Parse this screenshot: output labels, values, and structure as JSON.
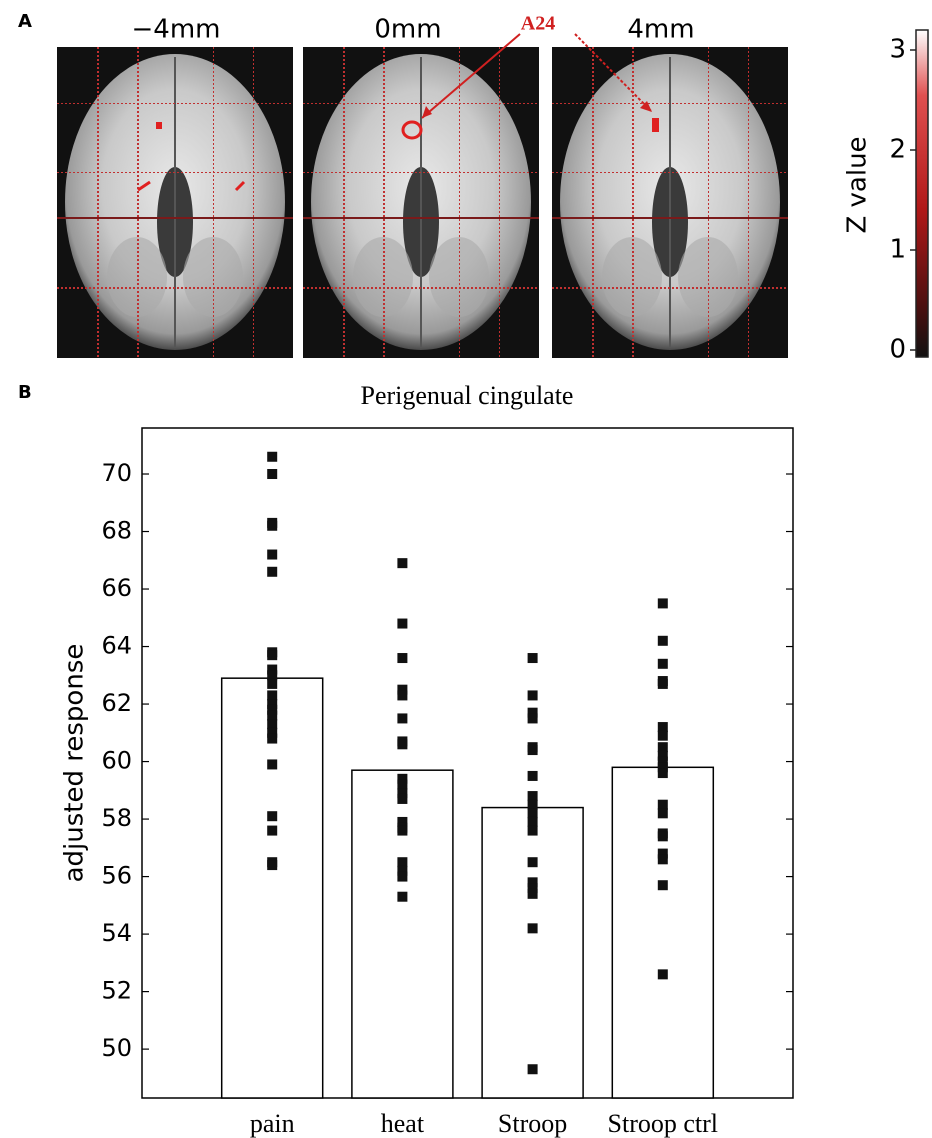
{
  "panel_a": {
    "panel_label": "A",
    "slice_labels": [
      "−4mm",
      "0mm",
      "4mm"
    ],
    "annotation": "A24",
    "colorbar": {
      "label": "Z value",
      "lim": [
        -0.07,
        3.2
      ],
      "ticks": [
        0,
        1,
        2,
        3
      ]
    }
  },
  "chart_data": {
    "type": "bar",
    "panel_label": "B",
    "title": "Perigenual cingulate",
    "y_label": "adjusted response",
    "categories": [
      "pain",
      "heat",
      "Stroop",
      "Stroop ctrl"
    ],
    "values": [
      62.9,
      59.7,
      58.4,
      59.8
    ],
    "color": "#ffffff",
    "point_color": "#111111",
    "points": [
      [
        70.6,
        70.0,
        68.3,
        68.2,
        67.2,
        66.6,
        63.8,
        63.7,
        63.2,
        63.0,
        62.7,
        62.3,
        62.0,
        61.8,
        61.6,
        61.3,
        61.0,
        60.8,
        59.9,
        58.1,
        57.6,
        56.5,
        56.4
      ],
      [
        66.9,
        64.8,
        63.6,
        62.5,
        62.3,
        61.5,
        60.7,
        60.6,
        59.4,
        59.2,
        58.9,
        58.7,
        57.9,
        57.7,
        57.6,
        56.5,
        56.2,
        56.0,
        55.3
      ],
      [
        63.6,
        62.3,
        61.7,
        61.5,
        60.5,
        60.4,
        59.5,
        58.8,
        58.5,
        58.2,
        57.9,
        57.6,
        56.5,
        55.8,
        55.6,
        55.4,
        54.2,
        49.3
      ],
      [
        65.5,
        64.2,
        63.4,
        62.8,
        62.7,
        61.2,
        60.9,
        60.5,
        60.2,
        60.0,
        59.8,
        59.6,
        58.5,
        58.2,
        57.5,
        57.4,
        56.8,
        56.6,
        55.7,
        52.6
      ]
    ],
    "ylim": [
      48.3,
      71.6
    ],
    "yticks": [
      50,
      52,
      54,
      56,
      58,
      60,
      62,
      64,
      66,
      68,
      70
    ],
    "grid": false
  }
}
